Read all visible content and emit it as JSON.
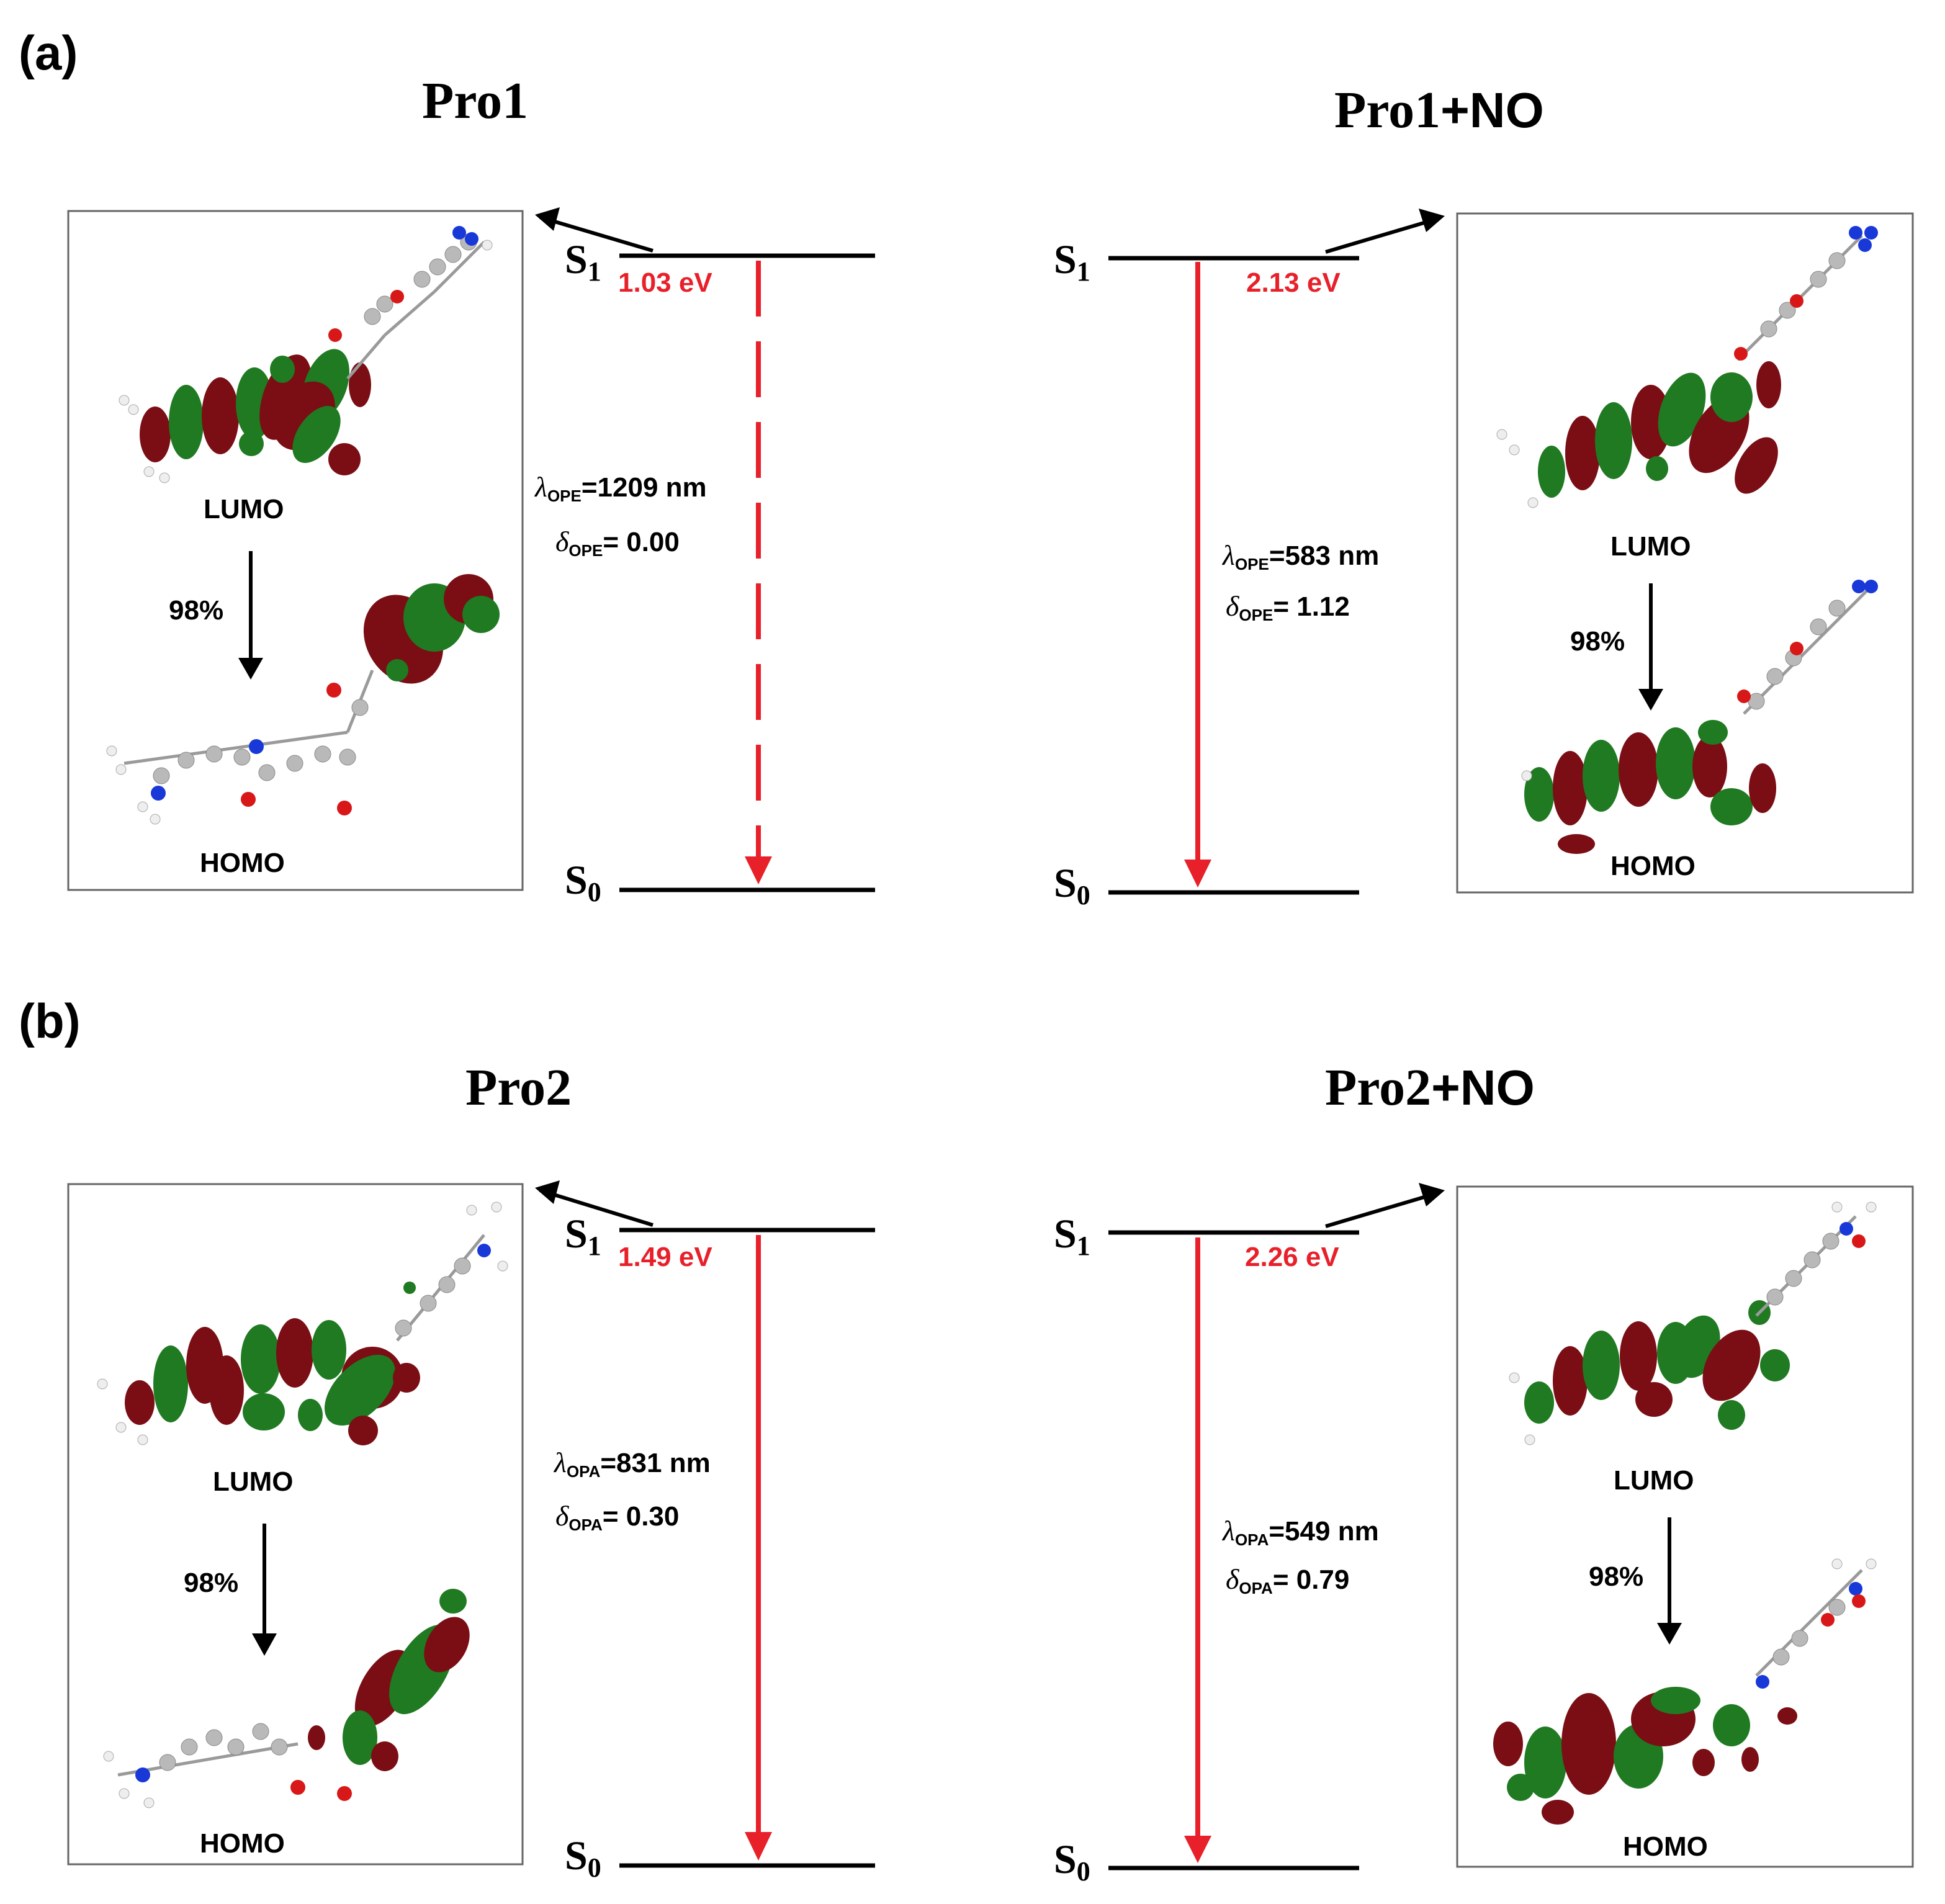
{
  "panels": [
    {
      "label": "(a)",
      "left": {
        "title": "Pro1",
        "title_suffix": "",
        "s1": "S",
        "s1_sub": "1",
        "s0": "S",
        "s0_sub": "0",
        "energy": "1.03 eV",
        "lambda_sym": "λ",
        "lambda_sub": "OPE",
        "lambda_val": "=1209 nm",
        "delta_sym": "δ",
        "delta_sub": "OPE",
        "delta_val": "= 0.00",
        "lumo": "LUMO",
        "homo": "HOMO",
        "percent": "98%",
        "transition_style": "dashed"
      },
      "right": {
        "title": "Pro1",
        "title_suffix": "+NO",
        "s1": "S",
        "s1_sub": "1",
        "s0": "S",
        "s0_sub": "0",
        "energy": "2.13 eV",
        "lambda_sym": "λ",
        "lambda_sub": "OPE",
        "lambda_val": "=583 nm",
        "delta_sym": "δ",
        "delta_sub": "OPE",
        "delta_val": "= 1.12",
        "lumo": "LUMO",
        "homo": "HOMO",
        "percent": "98%",
        "transition_style": "solid"
      }
    },
    {
      "label": "(b)",
      "left": {
        "title": "Pro2",
        "title_suffix": "",
        "s1": "S",
        "s1_sub": "1",
        "s0": "S",
        "s0_sub": "0",
        "energy": "1.49 eV",
        "lambda_sym": "λ",
        "lambda_sub": "OPA",
        "lambda_val": "=831 nm",
        "delta_sym": "δ",
        "delta_sub": "OPA",
        "delta_val": "= 0.30",
        "lumo": "LUMO",
        "homo": "HOMO",
        "percent": "98%",
        "transition_style": "solid"
      },
      "right": {
        "title": "Pro2",
        "title_suffix": "+NO",
        "s1": "S",
        "s1_sub": "1",
        "s0": "S",
        "s0_sub": "0",
        "energy": "2.26 eV",
        "lambda_sym": "λ",
        "lambda_sub": "OPA",
        "lambda_val": "=549 nm",
        "delta_sym": "δ",
        "delta_sub": "OPA",
        "delta_val": "= 0.79",
        "lumo": "LUMO",
        "homo": "HOMO",
        "percent": "98%",
        "transition_style": "solid"
      }
    }
  ],
  "colors": {
    "transition": "#e8202a",
    "orbital_positive": "#7a0e14",
    "orbital_negative": "#1f7a22",
    "oxygen": "#d81818",
    "nitrogen": "#1838d8"
  }
}
